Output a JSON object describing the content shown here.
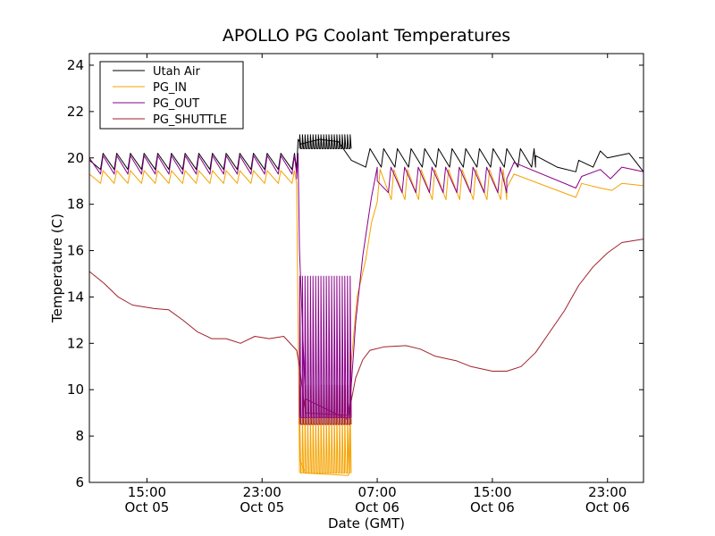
{
  "chart_data": {
    "type": "line",
    "title": "APOLLO PG Coolant Temperatures",
    "xlabel": "Date (GMT)",
    "ylabel": "Temperature (C)",
    "xlim_hours": [
      0,
      38.5
    ],
    "ylim": [
      6,
      24.5
    ],
    "yticks": [
      6,
      8,
      10,
      12,
      14,
      16,
      18,
      20,
      22,
      24
    ],
    "xticks": [
      {
        "hour": 4,
        "line1": "15:00",
        "line2": "Oct 05"
      },
      {
        "hour": 12,
        "line1": "23:00",
        "line2": "Oct 05"
      },
      {
        "hour": 20,
        "line1": "07:00",
        "line2": "Oct 06"
      },
      {
        "hour": 28,
        "line1": "15:00",
        "line2": "Oct 06"
      },
      {
        "hour": 36,
        "line1": "23:00",
        "line2": "Oct 06"
      }
    ],
    "legend_position": "top-left",
    "series": [
      {
        "name": "Utah Air",
        "color": "#000000",
        "sawtooth": [
          {
            "start": 0.0,
            "end": 14.4,
            "period": 0.95,
            "low": 19.5,
            "high": 20.2
          },
          {
            "start": 19.5,
            "end": 31.0,
            "period": 0.95,
            "low": 19.6,
            "high": 20.4
          }
        ],
        "points": [
          [
            0,
            19.9
          ],
          [
            14.5,
            20.8
          ],
          [
            14.7,
            20.6
          ],
          [
            16.0,
            20.8
          ],
          [
            17.3,
            20.7
          ],
          [
            18.2,
            19.9
          ],
          [
            19.2,
            19.6
          ],
          [
            31.0,
            20.1
          ],
          [
            32.5,
            19.6
          ],
          [
            33.8,
            19.4
          ],
          [
            34.0,
            19.9
          ],
          [
            35.0,
            19.6
          ],
          [
            35.5,
            20.3
          ],
          [
            36.0,
            20.0
          ],
          [
            37.5,
            20.2
          ],
          [
            38.5,
            19.4
          ]
        ]
      },
      {
        "name": "PG_IN",
        "color": "#f5a300",
        "sawtooth": [
          {
            "start": 0.0,
            "end": 14.4,
            "period": 0.95,
            "low": 18.9,
            "high": 19.45
          },
          {
            "start": 20.2,
            "end": 29.0,
            "period": 0.95,
            "low": 18.2,
            "high": 19.5
          }
        ],
        "points": [
          [
            0,
            19.3
          ],
          [
            14.4,
            18.9
          ],
          [
            14.6,
            7.0
          ],
          [
            15.0,
            6.4
          ],
          [
            18.0,
            6.3
          ],
          [
            18.2,
            11.2
          ],
          [
            18.6,
            14.0
          ],
          [
            19.2,
            15.6
          ],
          [
            19.6,
            17.2
          ],
          [
            20.0,
            18.1
          ],
          [
            29.0,
            18.7
          ],
          [
            29.5,
            19.3
          ],
          [
            33.8,
            18.3
          ],
          [
            34.2,
            18.9
          ],
          [
            35.5,
            18.7
          ],
          [
            36.3,
            18.6
          ],
          [
            37.0,
            18.9
          ],
          [
            38.5,
            18.8
          ]
        ]
      },
      {
        "name": "PG_OUT",
        "color": "#880088",
        "sawtooth": [
          {
            "start": 0.0,
            "end": 14.4,
            "period": 0.95,
            "low": 19.3,
            "high": 20.1
          },
          {
            "start": 20.0,
            "end": 29.0,
            "period": 0.95,
            "low": 18.5,
            "high": 19.6
          }
        ],
        "points": [
          [
            0,
            20.0
          ],
          [
            14.4,
            19.1
          ],
          [
            14.5,
            20.2
          ],
          [
            14.6,
            16.0
          ],
          [
            15.0,
            9.6
          ],
          [
            18.0,
            8.7
          ],
          [
            18.2,
            10.2
          ],
          [
            18.5,
            12.9
          ],
          [
            19.0,
            15.8
          ],
          [
            19.6,
            18.3
          ],
          [
            20.0,
            19.0
          ],
          [
            29.0,
            19.1
          ],
          [
            29.5,
            19.8
          ],
          [
            33.8,
            18.7
          ],
          [
            34.2,
            19.2
          ],
          [
            35.5,
            19.5
          ],
          [
            36.2,
            19.1
          ],
          [
            37.0,
            19.6
          ],
          [
            38.5,
            19.4
          ]
        ]
      },
      {
        "name": "PG_SHUTTLE",
        "color": "#a0202a",
        "points": [
          [
            0,
            15.1
          ],
          [
            1.0,
            14.6
          ],
          [
            2.0,
            14.0
          ],
          [
            3.0,
            13.65
          ],
          [
            4.5,
            13.5
          ],
          [
            5.5,
            13.45
          ],
          [
            6.5,
            13.0
          ],
          [
            7.5,
            12.5
          ],
          [
            8.5,
            12.2
          ],
          [
            9.5,
            12.2
          ],
          [
            10.5,
            12.0
          ],
          [
            11.5,
            12.3
          ],
          [
            12.5,
            12.2
          ],
          [
            13.5,
            12.3
          ],
          [
            14.4,
            11.7
          ],
          [
            14.6,
            11.0
          ],
          [
            15.0,
            9.0
          ],
          [
            18.0,
            8.9
          ],
          [
            18.5,
            10.5
          ],
          [
            19.0,
            11.3
          ],
          [
            19.5,
            11.7
          ],
          [
            20.5,
            11.85
          ],
          [
            22.0,
            11.9
          ],
          [
            23.0,
            11.75
          ],
          [
            24.0,
            11.45
          ],
          [
            25.5,
            11.25
          ],
          [
            26.5,
            11.0
          ],
          [
            28.0,
            10.8
          ],
          [
            29.0,
            10.8
          ],
          [
            30.0,
            11.0
          ],
          [
            31.0,
            11.6
          ],
          [
            32.0,
            12.5
          ],
          [
            33.0,
            13.4
          ],
          [
            34.0,
            14.5
          ],
          [
            35.0,
            15.3
          ],
          [
            36.0,
            15.9
          ],
          [
            37.0,
            16.35
          ],
          [
            38.5,
            16.5
          ]
        ]
      }
    ],
    "spikes": {
      "start": 14.6,
      "end": 18.1,
      "count": 20,
      "bands": [
        {
          "series": "PG_IN",
          "color": "#f5a300",
          "low": 6.4,
          "high": 9.0
        },
        {
          "series": "PG_SHUTTLE",
          "color": "#a0202a",
          "low": 8.5,
          "high": 10.2
        },
        {
          "series": "PG_OUT",
          "color": "#880088",
          "low": 8.8,
          "high": 14.9
        },
        {
          "series": "Utah Air",
          "color": "#000000",
          "low": 20.4,
          "high": 21.0
        }
      ]
    }
  }
}
